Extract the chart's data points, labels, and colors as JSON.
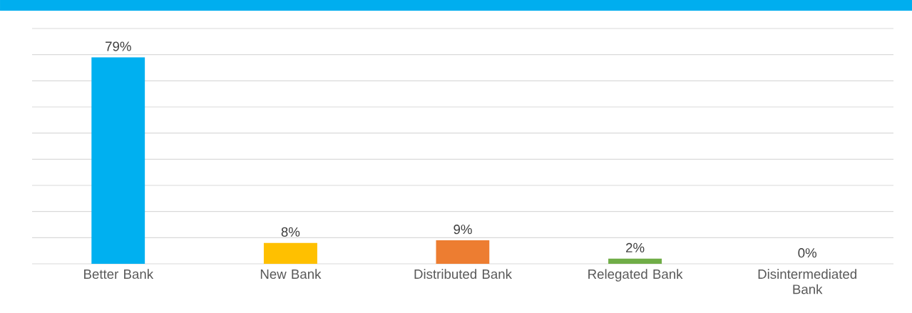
{
  "chart_data": {
    "type": "bar",
    "categories": [
      "Better Bank",
      "New Bank",
      "Distributed Bank",
      "Relegated Bank",
      "Disintermediated Bank"
    ],
    "values": [
      79,
      8,
      9,
      2,
      0
    ],
    "value_labels": [
      "79%",
      "8%",
      "9%",
      "2%",
      "0%"
    ],
    "colors": [
      "#00b0f0",
      "#ffc000",
      "#ed7d31",
      "#70ad47",
      "#5b9bd5"
    ],
    "ylim": [
      0,
      90
    ],
    "yticks": [
      0,
      10,
      20,
      30,
      40,
      50,
      60,
      70,
      80,
      90
    ],
    "grid": "y",
    "tick_labels": "x"
  }
}
